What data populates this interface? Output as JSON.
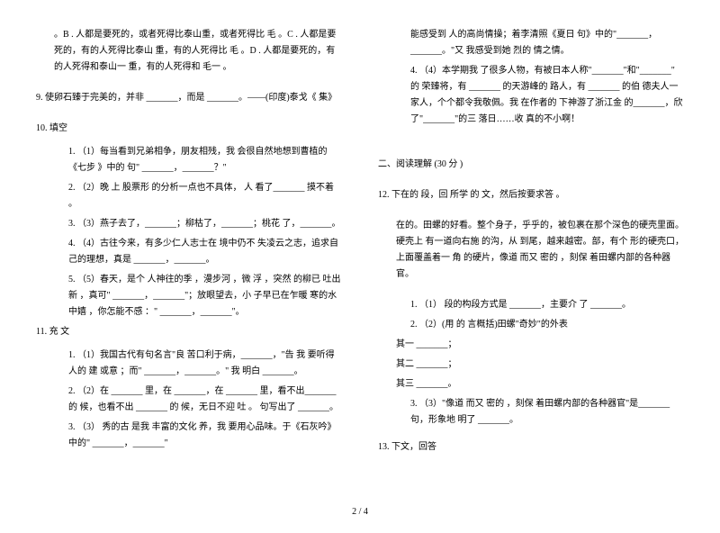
{
  "leftCol": {
    "topPara": "。B . 人都是要死的，或者死得比泰山重，或者死得比 毛 。C . 人都是要死的，有的人死得比泰山 重，有的人死得比 毛 。D . 人都是要死的，有的人死得和泰山一 重，有的人死得和 毛一 。",
    "q9": "9.  使卵石臻于完美的，并非 _______，而是 _______。——(印度)泰戈《 集》",
    "q10label": "10.  填空",
    "q10_1": "1. （1）每当看到兄弟相争，朋友相残，我 会很自然地想到曹植的《七步 》中的 句\" _______，_______？\"",
    "q10_2": "2. （2）晚 上 股票形 的分析一点也不具体，  人 看了_______ 摸不着 。",
    "q10_3": "3. （3）燕子去了，_______；柳枯了，_______；桃花 了，_______。",
    "q10_4": "4. （4）古往今来，有多少仁人志士在   境中仍不 失凌云之志，追求自己的理想，真是 _______，_______。",
    "q10_5": "5. （5）春天，是个 人神往的季 ，漫步河 ，微 浮 ，突然 的柳已 吐出新 ，真可\" _______，_______\"；放眼望去，小 子早已在乍暖 寒的水中嬉 ，你怎能不感 ：\" _______，_______\"。",
    "q11label": "11.   充 文",
    "q11_1": "1. （1）我国古代有句名言\"良 苦口利于病，_______，\"告 我 要听得  人的 建 或意 ；而\" _______，_______。\" 我 明白 _______。",
    "q11_2": "2. （2）在 _______ 里，在 _______，在 _______ 里，看不出_______的 候，也看不出 _______ 的 候，无日不迎 吐 。 句写出了 _______。",
    "q11_3": "3. （3） 秀的古  是我 丰富的文化 养，我 要用心品味。于《石灰吟》中的\" _______，_______\""
  },
  "rightCol": {
    "cont1": "能感受到 人的高尚情操；着李清照《夏日 句》中的\"_______，_______。\"又 我感受到她 烈的 情之情。",
    "q11_4": "4. （4）本学期我  了很多人物，有被日本人称\"_______\"和\"_______\" 的 荣臻将，有 _______ 的天游峰的 路人，有 _______ 的伯 德夫人一家人，个个都令我敬佩。我 在作者的 下神游了浙江金 的_______，欣 了\"_______\"的三 落日……收 真的不小啊！",
    "section2": "二、阅读理解  (30 分 )",
    "q12label": "12.    下在的 段，回 所学 的 文，然后按要求答 。",
    "q12para1": " 在的。田螺的好看。整个身子，乎乎的，被包裹在那个深色的硬壳里面。硬壳上 有一道向右施 的沟，从 到尾，越来越密。部，有个 形的硬壳口，上面覆盖着一 角 的硬片，像道 而又 密的 ，刻保 着田螺内部的各种器官。",
    "q12_1": "1. （1） 段的构段方式是 _______，主要介 了 _______。",
    "q12_2": "2. （2）(用 的 言概括)田螺\"奇妙\"的外表",
    "qr1": "其一 _______；",
    "qr2": "其二 _______；",
    "qr3": "其三 _______。",
    "q12_3": "3. （3）\"像道 而又 密的 ，刻保 着田螺内部的各种器官\"是_______句，形象地 明了 _______。",
    "q13label": "13.    下文，回答"
  },
  "footer": "2 / 4"
}
